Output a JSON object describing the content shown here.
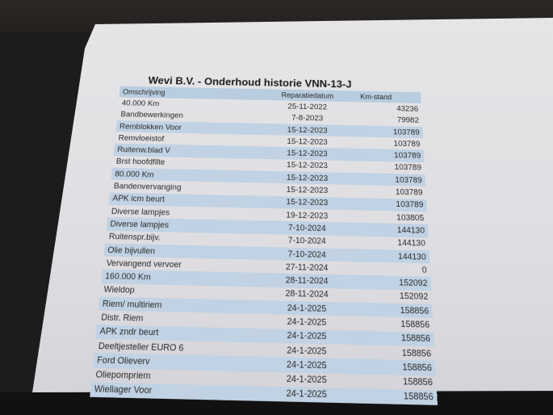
{
  "title": "Wevi B.V. - Onderhoud historie VNN-13-J",
  "columns": [
    "Omschrijving",
    "Reparatiedatum",
    "Km-stand"
  ],
  "rows": [
    [
      "40.000 Km",
      "25-11-2022",
      "43236"
    ],
    [
      "Bandbewerkingen",
      "7-8-2023",
      "79982"
    ],
    [
      "Remblokken Voor",
      "15-12-2023",
      "103789"
    ],
    [
      "Remvloeistof",
      "15-12-2023",
      "103789"
    ],
    [
      "Ruitenw.blad V",
      "15-12-2023",
      "103789"
    ],
    [
      "Brst hoofdfilte",
      "15-12-2023",
      "103789"
    ],
    [
      "80.000 Km",
      "15-12-2023",
      "103789"
    ],
    [
      "Bandenvervanging",
      "15-12-2023",
      "103789"
    ],
    [
      "APK icm beurt",
      "15-12-2023",
      "103789"
    ],
    [
      "Diverse lampjes",
      "19-12-2023",
      "103805"
    ],
    [
      "Diverse lampjes",
      "7-10-2024",
      "144130"
    ],
    [
      "Ruitenspr.bijv.",
      "7-10-2024",
      "144130"
    ],
    [
      "Olie bijvullen",
      "7-10-2024",
      "144130"
    ],
    [
      "Vervangend vervoer",
      "27-11-2024",
      "0"
    ],
    [
      "160.000 Km",
      "28-11-2024",
      "152092"
    ],
    [
      "Wieldop",
      "28-11-2024",
      "152092"
    ],
    [
      "Riem/ multiriem",
      "24-1-2025",
      "158856"
    ],
    [
      "Distr. Riem",
      "24-1-2025",
      "158856"
    ],
    [
      "APK zndr beurt",
      "24-1-2025",
      "158856"
    ],
    [
      "Deeltjesteller EURO 6",
      "24-1-2025",
      "158856"
    ],
    [
      "Ford Olieverv",
      "24-1-2025",
      "158856"
    ],
    [
      "Oliepompriem",
      "24-1-2025",
      "158856"
    ],
    [
      "Wiellager Voor",
      "24-1-2025",
      "158856"
    ]
  ]
}
